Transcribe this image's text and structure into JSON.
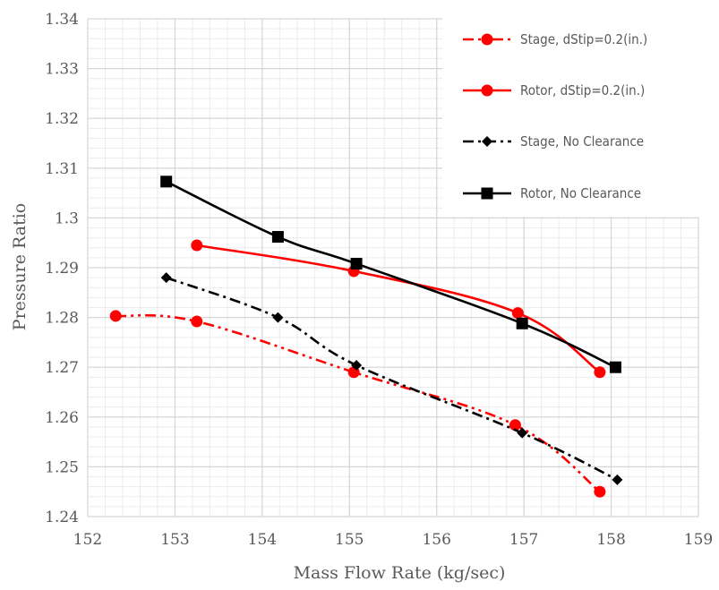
{
  "chart_data": {
    "type": "line",
    "xlabel": "Mass Flow Rate (kg/sec)",
    "ylabel": "Pressure Ratio",
    "xlim": [
      152,
      159
    ],
    "ylim": [
      1.24,
      1.34
    ],
    "x_ticks": [
      "152",
      "153",
      "154",
      "155",
      "156",
      "157",
      "158",
      "159"
    ],
    "y_ticks": [
      "1.24",
      "1.25",
      "1.26",
      "1.27",
      "1.28",
      "1.29",
      "1.3",
      "1.31",
      "1.32",
      "1.33",
      "1.34"
    ],
    "grid": true,
    "minor_grid": true,
    "legend_position": "top-right",
    "series": [
      {
        "name": "Stage, dStip=0.2(in.)",
        "color": "#ff0000",
        "dash": "dash-dot-dot",
        "marker": "circle",
        "points": [
          [
            152.32,
            1.2803
          ],
          [
            153.25,
            1.2792
          ],
          [
            155.05,
            1.269
          ],
          [
            156.9,
            1.2584
          ],
          [
            157.87,
            1.245
          ]
        ]
      },
      {
        "name": "Rotor, dStip=0.2(in.)",
        "color": "#ff0000",
        "dash": "solid",
        "marker": "circle",
        "points": [
          [
            153.25,
            1.2945
          ],
          [
            155.05,
            1.2893
          ],
          [
            156.93,
            1.2809
          ],
          [
            157.87,
            1.269
          ]
        ]
      },
      {
        "name": "Stage, No Clearance",
        "color": "#000000",
        "dash": "dash-dot",
        "marker": "diamond",
        "points": [
          [
            152.9,
            1.288
          ],
          [
            154.18,
            1.28
          ],
          [
            155.08,
            1.2704
          ],
          [
            156.98,
            1.2568
          ],
          [
            158.07,
            1.2474
          ]
        ]
      },
      {
        "name": "Rotor, No Clearance",
        "color": "#000000",
        "dash": "solid",
        "marker": "square",
        "points": [
          [
            152.9,
            1.3073
          ],
          [
            154.18,
            1.2962
          ],
          [
            155.08,
            1.2908
          ],
          [
            156.98,
            1.2788
          ],
          [
            158.05,
            1.27
          ]
        ]
      }
    ]
  }
}
